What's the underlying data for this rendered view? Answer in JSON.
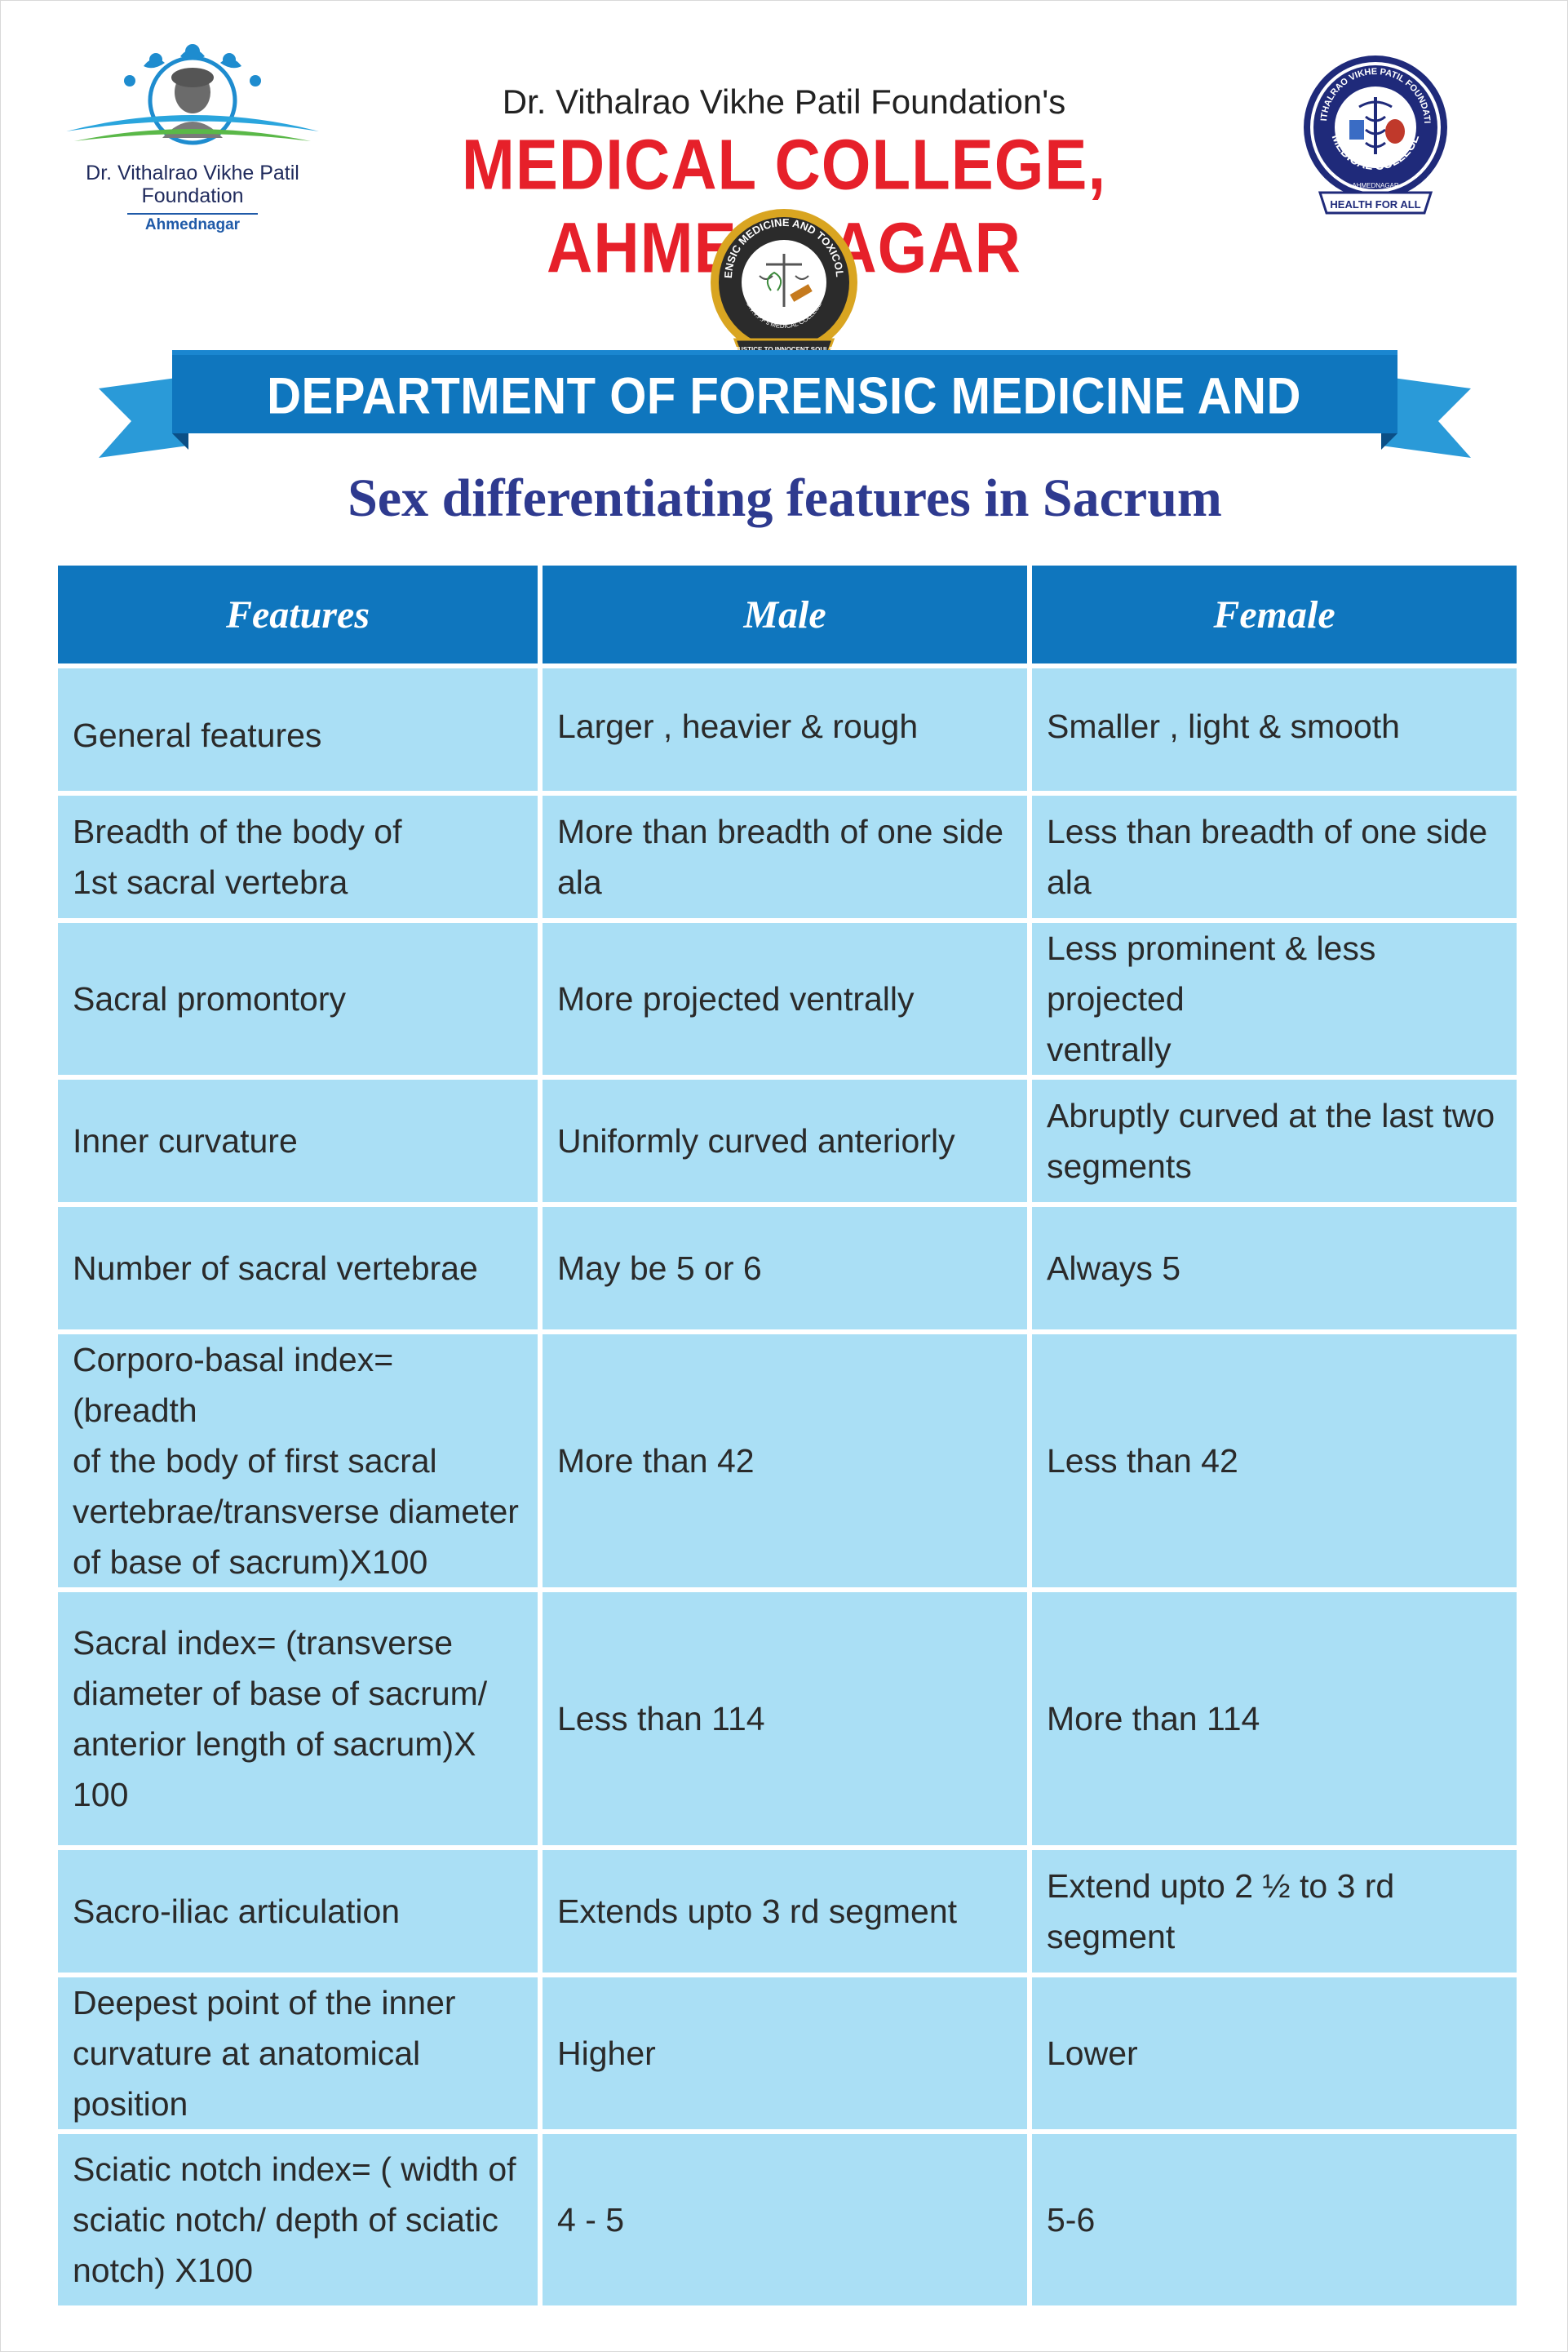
{
  "header": {
    "left_logo": {
      "name_line1": "Dr. Vithalrao Vikhe Patil",
      "name_line2": "Foundation",
      "city": "Ahmednagar"
    },
    "foundation_line": "Dr. Vithalrao Vikhe Patil Foundation's",
    "college_name": "MEDICAL COLLEGE, AHMEDNAGAR",
    "right_seal": {
      "ring_text": "DR. VITHALRAO VIKHE PATIL FOUNDATION'S",
      "bottom_text": "MEDICAL COLLEGE",
      "city": "AHMEDNAGAR",
      "motto": "HEALTH FOR ALL"
    },
    "center_seal": {
      "ring_text": "FORENSIC MEDICINE AND TOXICOLOGY",
      "inner_text": "D.V.V.P.F's MEDICAL COLLEGE",
      "motto": "JUSTICE TO INNOCENT SOULS"
    }
  },
  "department": "DEPARTMENT OF FORENSIC MEDICINE AND TOXICOLOGY",
  "subtitle": "Sex differentiating features in Sacrum",
  "table": {
    "headers": [
      "Features",
      "Male",
      "Female"
    ],
    "rows": [
      [
        "General features",
        "Larger , heavier & rough",
        "Smaller , light & smooth"
      ],
      [
        "Breadth of the body of\n1st sacral vertebra",
        "More than breadth of one side ala",
        "Less than breadth of one side ala"
      ],
      [
        "Sacral promontory",
        "More projected ventrally",
        "Less prominent & less projected\nventrally"
      ],
      [
        "Inner curvature",
        "Uniformly curved anteriorly",
        "Abruptly curved at the last two\nsegments"
      ],
      [
        "Number of sacral vertebrae",
        "May be 5 or 6",
        "Always 5"
      ],
      [
        "Corporo-basal index= (breadth\nof the body of first sacral\nvertebrae/transverse diameter\nof base of sacrum)X100",
        "More than 42",
        "Less than 42"
      ],
      [
        "Sacral index= (transverse\ndiameter of base of sacrum/\nanterior length of sacrum)X 100",
        "Less than 114",
        "More than 114"
      ],
      [
        "Sacro-iliac articulation",
        "Extends upto 3 rd segment",
        "Extend upto 2 ½ to 3 rd segment"
      ],
      [
        "Deepest point of the inner\ncurvature at anatomical position",
        "Higher",
        "Lower"
      ],
      [
        "Sciatic notch index= ( width of\nsciatic notch/ depth of sciatic\nnotch) X100",
        "4 - 5",
        "5-6"
      ]
    ]
  },
  "colors": {
    "header_blue": "#0f76be",
    "cell_blue": "#aadff5",
    "college_red": "#e6202a",
    "subtitle_navy": "#2e3a8f"
  }
}
